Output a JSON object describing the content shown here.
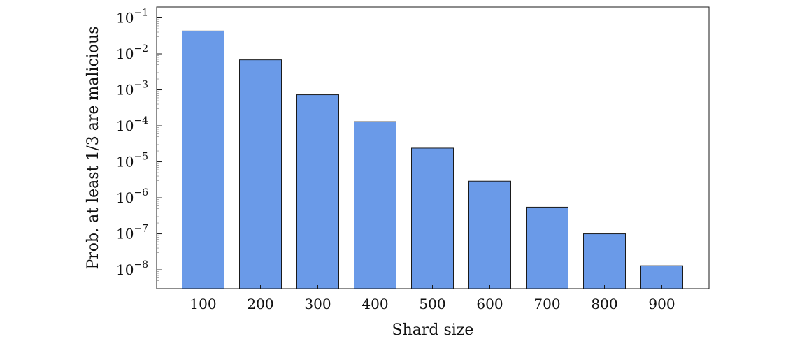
{
  "chart_data": {
    "type": "bar",
    "categories": [
      "100",
      "200",
      "300",
      "400",
      "500",
      "600",
      "700",
      "800",
      "900"
    ],
    "values": [
      0.043,
      0.0068,
      0.00073,
      0.00013,
      2.4e-05,
      2.9e-06,
      5.5e-07,
      1e-07,
      1.3e-08
    ],
    "title": "",
    "xlabel": "Shard size",
    "ylabel": "Prob. at least 1/3 are malicious",
    "yscale": "log",
    "ylim": [
      3e-09,
      0.2
    ],
    "yticks": [
      {
        "base": "10",
        "exp": "−8",
        "value": 1e-08
      },
      {
        "base": "10",
        "exp": "−7",
        "value": 1e-07
      },
      {
        "base": "10",
        "exp": "−6",
        "value": 1e-06
      },
      {
        "base": "10",
        "exp": "−5",
        "value": 1e-05
      },
      {
        "base": "10",
        "exp": "−4",
        "value": 0.0001
      },
      {
        "base": "10",
        "exp": "−3",
        "value": 0.001
      },
      {
        "base": "10",
        "exp": "−2",
        "value": 0.01
      },
      {
        "base": "10",
        "exp": "−1",
        "value": 0.1
      }
    ],
    "grid": false,
    "bar_color": "#6a9ae8",
    "bar_edge_color": "#1a1a1a"
  }
}
